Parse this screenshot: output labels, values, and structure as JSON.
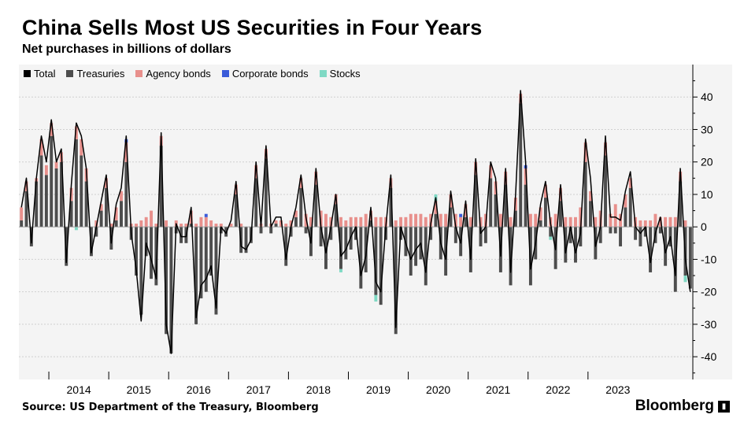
{
  "chart_data": {
    "type": "bar",
    "title": "China Sells Most US Securities in Four Years",
    "subtitle": "Net purchases in billions of dollars",
    "ylim": [
      -47,
      50
    ],
    "yticks": [
      40,
      30,
      20,
      10,
      0,
      -10,
      -20,
      -30,
      -40
    ],
    "xlabels": [
      "2014",
      "2015",
      "2016",
      "2017",
      "2018",
      "2019",
      "2020",
      "2021",
      "2022",
      "2023"
    ],
    "start_year": 2013.5,
    "legend_position": "top-left",
    "grid": true,
    "stacked": true,
    "series": [
      {
        "name": "Total",
        "color": "#000000",
        "values": [
          6,
          15,
          -5,
          15,
          28,
          20,
          33,
          20,
          24,
          -11,
          13,
          32,
          28,
          18,
          -8,
          0,
          8,
          16,
          -5,
          7,
          12,
          28,
          -2,
          -13,
          -29,
          -5,
          -10,
          -16,
          29,
          -30,
          -39,
          1,
          -3,
          -3,
          6,
          -28,
          -18,
          -16,
          -12,
          -25,
          0,
          -2,
          2,
          14,
          -6,
          -7,
          -4,
          20,
          0,
          25,
          0,
          3,
          3,
          -10,
          0,
          6,
          16,
          3,
          -5,
          18,
          0,
          -8,
          0,
          10,
          -9,
          -7,
          -3,
          0,
          -15,
          -9,
          6,
          -17,
          -20,
          0,
          16,
          -31,
          0,
          -5,
          -10,
          -7,
          -5,
          -14,
          1,
          9,
          -5,
          -10,
          11,
          0,
          -5,
          8,
          -10,
          21,
          -2,
          0,
          20,
          15,
          -9,
          18,
          -14,
          10,
          42,
          20,
          -13,
          -5,
          7,
          14,
          1,
          -7,
          13,
          -8,
          0,
          -8,
          -2,
          27,
          15,
          -6,
          0,
          28,
          3,
          3,
          2,
          11,
          17,
          0,
          -2,
          0,
          -11,
          -2,
          3,
          -8,
          -3,
          -15,
          18,
          -10,
          -20
        ]
      },
      {
        "name": "Treasuries",
        "color": "#4d4d4d",
        "values": [
          2,
          11,
          -6,
          14,
          22,
          16,
          28,
          18,
          20,
          -12,
          8,
          27,
          22,
          14,
          -9,
          -3,
          5,
          12,
          -7,
          2,
          8,
          20,
          -4,
          -15,
          -27,
          -9,
          -16,
          -18,
          25,
          -33,
          -39,
          -2,
          -5,
          -5,
          1,
          -30,
          -22,
          -20,
          -15,
          -27,
          -2,
          -3,
          0,
          10,
          -8,
          -8,
          -5,
          15,
          -2,
          21,
          -2,
          1,
          0,
          -12,
          -3,
          3,
          12,
          -2,
          -9,
          13,
          -6,
          -13,
          -4,
          7,
          -13,
          -10,
          -7,
          -4,
          -19,
          -14,
          2,
          -21,
          -24,
          -4,
          12,
          -33,
          -4,
          -9,
          -15,
          -12,
          -10,
          -18,
          -4,
          4,
          -10,
          -15,
          6,
          -5,
          -9,
          3,
          -14,
          16,
          -6,
          -5,
          15,
          10,
          -14,
          13,
          -18,
          5,
          38,
          13,
          -18,
          -10,
          2,
          9,
          -3,
          -13,
          8,
          -11,
          -5,
          -11,
          -6,
          20,
          8,
          -10,
          -5,
          22,
          -2,
          -2,
          -6,
          6,
          12,
          -4,
          -6,
          -3,
          -14,
          -5,
          -2,
          -12,
          -6,
          -20,
          14,
          -15,
          -19
        ]
      },
      {
        "name": "Agency bonds",
        "color": "#e8908c",
        "values": [
          4,
          3,
          0,
          1,
          5,
          3,
          4,
          2,
          3,
          0,
          4,
          4,
          5,
          4,
          0,
          2,
          2,
          3,
          1,
          4,
          3,
          6,
          1,
          1,
          2,
          3,
          5,
          1,
          3,
          2,
          0,
          2,
          1,
          1,
          4,
          1,
          3,
          3,
          2,
          1,
          1,
          0,
          1,
          3,
          1,
          0,
          0,
          4,
          1,
          3,
          1,
          1,
          2,
          1,
          2,
          2,
          3,
          4,
          3,
          4,
          5,
          4,
          3,
          3,
          3,
          2,
          3,
          3,
          3,
          4,
          3,
          3,
          3,
          3,
          3,
          2,
          3,
          3,
          4,
          4,
          4,
          3,
          4,
          4,
          4,
          4,
          4,
          4,
          3,
          4,
          3,
          4,
          3,
          4,
          4,
          4,
          4,
          4,
          3,
          4,
          3,
          5,
          4,
          4,
          4,
          4,
          3,
          4,
          4,
          3,
          3,
          3,
          6,
          6,
          3,
          3,
          5,
          4,
          4,
          7,
          4,
          4,
          3,
          3,
          2,
          2,
          2,
          4,
          3,
          3,
          3,
          3,
          3,
          2
        ]
      },
      {
        "name": "Corporate bonds",
        "color": "#3a5bd9",
        "values": [
          0,
          0,
          0,
          0,
          0,
          0,
          0,
          0,
          0,
          0,
          0,
          0,
          0,
          0,
          0,
          0,
          0,
          0,
          0,
          0,
          0,
          1,
          0,
          0,
          0,
          0,
          0,
          0,
          0,
          0,
          0,
          0,
          0,
          0,
          0,
          0,
          0,
          1,
          0,
          0,
          0,
          0,
          0,
          0,
          0,
          0,
          0,
          0,
          0,
          0,
          0,
          0,
          0,
          0,
          0,
          0,
          0,
          0,
          0,
          0,
          0,
          0,
          0,
          0,
          0,
          0,
          0,
          0,
          0,
          0,
          0,
          0,
          0,
          0,
          0,
          0,
          0,
          0,
          0,
          0,
          0,
          0,
          0,
          0,
          0,
          0,
          0,
          0,
          1,
          0,
          0,
          0,
          0,
          0,
          0,
          0,
          0,
          0,
          0,
          0,
          0,
          1,
          0,
          0,
          0,
          0,
          0,
          0,
          0,
          0,
          0,
          0,
          0,
          0,
          0,
          0,
          0,
          0,
          0,
          0,
          0,
          0,
          0,
          0,
          0,
          0,
          0,
          0,
          0,
          0,
          0,
          0,
          0,
          0
        ]
      },
      {
        "name": "Stocks",
        "color": "#7fd9c4",
        "values": [
          0,
          0,
          0,
          0,
          0,
          0,
          0,
          0,
          0,
          0,
          0,
          -1,
          0,
          0,
          0,
          0,
          0,
          0,
          0,
          0,
          0,
          0,
          0,
          0,
          0,
          0,
          0,
          0,
          0,
          0,
          0,
          0,
          0,
          0,
          0,
          0,
          0,
          0,
          0,
          0,
          0,
          0,
          0,
          0,
          0,
          0,
          0,
          0,
          0,
          0,
          0,
          0,
          0,
          0,
          0,
          0,
          0,
          0,
          0,
          0,
          0,
          0,
          0,
          0,
          -1,
          0,
          0,
          0,
          0,
          0,
          0,
          -2,
          0,
          0,
          0,
          0,
          0,
          0,
          0,
          0,
          0,
          0,
          0,
          2,
          0,
          0,
          0,
          0,
          0,
          0,
          0,
          0,
          0,
          0,
          0,
          0,
          0,
          0,
          0,
          0,
          0,
          0,
          0,
          0,
          0,
          0,
          -1,
          0,
          0,
          0,
          0,
          0,
          0,
          0,
          0,
          0,
          0,
          0,
          0,
          0,
          0,
          0,
          0,
          0,
          0,
          0,
          0,
          0,
          0,
          0,
          0,
          0,
          0,
          -2
        ]
      }
    ]
  },
  "source_text": "Source: US Department of the Treasury, Bloomberg",
  "logo_text": "Bloomberg"
}
